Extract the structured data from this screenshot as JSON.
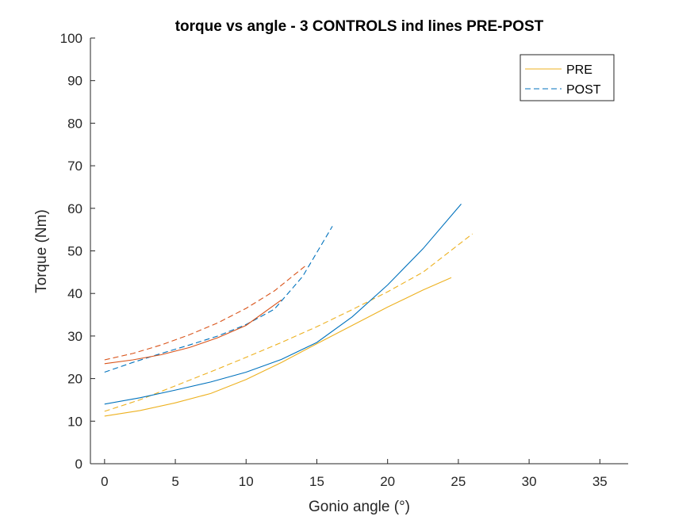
{
  "chart_data": {
    "type": "line",
    "title": "torque vs angle - 3 CONTROLS ind lines PRE-POST",
    "xlabel": "Gonio angle (°)",
    "ylabel": "Torque (Nm)",
    "xlim": [
      -1,
      37
    ],
    "ylim": [
      0,
      100
    ],
    "xticks": [
      0,
      5,
      10,
      15,
      20,
      25,
      30,
      35
    ],
    "yticks": [
      0,
      10,
      20,
      30,
      40,
      50,
      60,
      70,
      80,
      90,
      100
    ],
    "grid": false,
    "legend": {
      "position": "top-right",
      "entries": [
        {
          "label": "PRE",
          "color": "#EDB120",
          "dash": "solid"
        },
        {
          "label": "POST",
          "color": "#0072BD",
          "dash": "dashed"
        }
      ]
    },
    "series": [
      {
        "color": "#EDB120",
        "dash": "solid",
        "x": [
          0,
          2.5,
          5,
          7.5,
          10,
          12.5,
          15,
          17.5,
          20,
          22.5,
          24.5
        ],
        "y": [
          11.2,
          12.5,
          14.3,
          16.5,
          19.8,
          23.8,
          28.2,
          32.5,
          36.8,
          40.8,
          43.7
        ]
      },
      {
        "color": "#EDB120",
        "dash": "dashed",
        "x": [
          0,
          2.5,
          5,
          7.5,
          10,
          12.5,
          15,
          17.5,
          20,
          22.5,
          26
        ],
        "y": [
          12.3,
          15.0,
          18.3,
          21.6,
          25.0,
          28.5,
          32.2,
          36.2,
          40.4,
          45.0,
          54.0
        ]
      },
      {
        "color": "#0072BD",
        "dash": "solid",
        "x": [
          0,
          2.5,
          5,
          7.5,
          10,
          12.5,
          15,
          17.5,
          20,
          22.5,
          25.2
        ],
        "y": [
          14.0,
          15.5,
          17.3,
          19.2,
          21.5,
          24.5,
          28.5,
          34.5,
          42.0,
          50.5,
          61.0
        ]
      },
      {
        "color": "#0072BD",
        "dash": "dashed",
        "x": [
          0,
          2,
          4,
          6,
          8,
          10,
          12,
          14,
          16.1
        ],
        "y": [
          21.5,
          23.8,
          25.9,
          27.9,
          30.0,
          32.7,
          36.3,
          44.0,
          55.8
        ]
      },
      {
        "color": "#D95319",
        "dash": "solid",
        "x": [
          0,
          2,
          4,
          6,
          8,
          10,
          12.5
        ],
        "y": [
          23.5,
          24.4,
          25.6,
          27.3,
          29.6,
          32.5,
          38.5
        ]
      },
      {
        "color": "#D95319",
        "dash": "dashed",
        "x": [
          0,
          2,
          4,
          6,
          8,
          10,
          12,
          14.2
        ],
        "y": [
          24.4,
          25.9,
          27.9,
          30.3,
          33.1,
          36.5,
          40.6,
          46.5
        ]
      }
    ]
  }
}
